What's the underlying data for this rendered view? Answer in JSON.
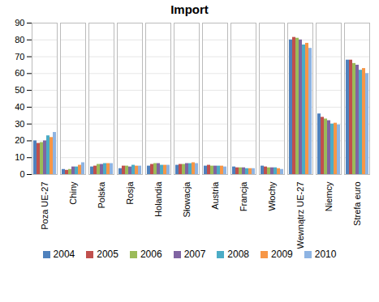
{
  "chart_data": {
    "type": "bar",
    "title": "Import",
    "categories": [
      "Poza UE-27",
      "Chiny",
      "Polska",
      "Rosja",
      "Holandia",
      "Słowacja",
      "Austria",
      "Francja",
      "Włochy",
      "Wewnątrz UE-27",
      "Niemcy",
      "Strefa euro"
    ],
    "series": [
      {
        "name": "2004",
        "color": "#4f81bd",
        "values": [
          20,
          3,
          4.5,
          3.5,
          5,
          5.5,
          5,
          4.5,
          5,
          80,
          36,
          68
        ]
      },
      {
        "name": "2005",
        "color": "#c0504d",
        "values": [
          18.5,
          2.5,
          5,
          5,
          6,
          6,
          5.5,
          4,
          4.5,
          81.5,
          34,
          68
        ]
      },
      {
        "name": "2006",
        "color": "#9bbb59",
        "values": [
          19,
          3,
          6,
          5,
          6.5,
          6,
          5,
          4,
          4,
          81,
          33,
          66
        ]
      },
      {
        "name": "2007",
        "color": "#8064a2",
        "values": [
          20,
          4.5,
          6,
          4.5,
          6.5,
          6.5,
          5,
          4,
          4,
          80,
          32,
          65
        ]
      },
      {
        "name": "2008",
        "color": "#4bacc6",
        "values": [
          23,
          4.5,
          6.5,
          5.5,
          5.5,
          6.5,
          5,
          3.5,
          4,
          77,
          30,
          62
        ]
      },
      {
        "name": "2009",
        "color": "#f79646",
        "values": [
          22,
          5.5,
          6.5,
          5,
          5.5,
          7,
          5,
          3.5,
          3.5,
          78,
          30.5,
          63
        ]
      },
      {
        "name": "2010",
        "color": "#8eb4e3",
        "values": [
          25,
          7,
          6.5,
          5,
          5.5,
          6.5,
          4.5,
          3.5,
          3,
          75,
          29.5,
          60
        ]
      }
    ],
    "ylim": [
      0,
      90
    ],
    "yticks": [
      0,
      10,
      20,
      30,
      40,
      50,
      60,
      70,
      80,
      90
    ],
    "grid": true,
    "legend": "bottom"
  }
}
